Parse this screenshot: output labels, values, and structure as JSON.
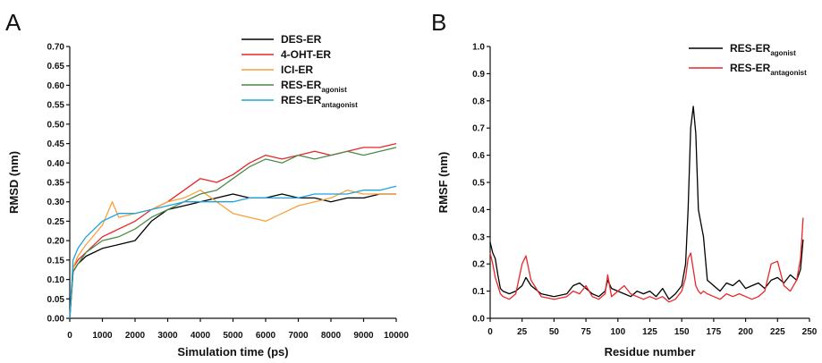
{
  "chart_data": [
    {
      "panel": "A",
      "type": "line",
      "xlabel": "Simulation time (ps)",
      "ylabel": "RMSD (nm)",
      "xlim": [
        0,
        10000
      ],
      "ylim": [
        0,
        0.7
      ],
      "xticks": [
        0,
        1000,
        2000,
        3000,
        4000,
        5000,
        6000,
        7000,
        8000,
        9000,
        10000
      ],
      "yticks": [
        "0.00",
        "0.05",
        "0.10",
        "0.15",
        "0.20",
        "0.25",
        "0.30",
        "0.35",
        "0.40",
        "0.45",
        "0.50",
        "0.55",
        "0.60",
        "0.65",
        "0.70"
      ],
      "legend_position": "top-right",
      "series": [
        {
          "name": "DES-ER",
          "color": "#000000",
          "x": [
            0,
            100,
            250,
            500,
            1000,
            1500,
            2000,
            2500,
            3000,
            3500,
            4000,
            4500,
            5000,
            5500,
            6000,
            6500,
            7000,
            7500,
            8000,
            8500,
            9000,
            9500,
            10000
          ],
          "y": [
            0.0,
            0.12,
            0.14,
            0.16,
            0.18,
            0.19,
            0.2,
            0.25,
            0.28,
            0.29,
            0.3,
            0.31,
            0.32,
            0.31,
            0.31,
            0.32,
            0.31,
            0.31,
            0.3,
            0.31,
            0.31,
            0.32,
            0.32
          ]
        },
        {
          "name": "4-OHT-ER",
          "color": "#e8262a",
          "x": [
            0,
            100,
            250,
            500,
            1000,
            1500,
            2000,
            2500,
            3000,
            3500,
            4000,
            4500,
            5000,
            5500,
            6000,
            6500,
            7000,
            7500,
            8000,
            8500,
            9000,
            9500,
            10000
          ],
          "y": [
            0.0,
            0.13,
            0.15,
            0.17,
            0.21,
            0.23,
            0.25,
            0.28,
            0.3,
            0.33,
            0.36,
            0.35,
            0.37,
            0.4,
            0.42,
            0.41,
            0.42,
            0.43,
            0.42,
            0.43,
            0.44,
            0.44,
            0.45
          ]
        },
        {
          "name": "ICI-ER",
          "color": "#f7a13b",
          "x": [
            0,
            100,
            250,
            500,
            1000,
            1300,
            1500,
            2000,
            2500,
            3000,
            3500,
            4000,
            4500,
            5000,
            5500,
            6000,
            6500,
            7000,
            7500,
            8000,
            8500,
            9000,
            9500,
            10000
          ],
          "y": [
            0.0,
            0.13,
            0.16,
            0.19,
            0.24,
            0.3,
            0.26,
            0.27,
            0.28,
            0.3,
            0.31,
            0.33,
            0.3,
            0.27,
            0.26,
            0.25,
            0.27,
            0.29,
            0.3,
            0.31,
            0.33,
            0.32,
            0.32,
            0.32
          ]
        },
        {
          "name": "RES-ER_agonist",
          "name_main": "RES-ER",
          "name_sub": "agonist",
          "color": "#4a8a4a",
          "x": [
            0,
            100,
            250,
            500,
            1000,
            1500,
            2000,
            2500,
            3000,
            3500,
            4000,
            4500,
            5000,
            5500,
            6000,
            6500,
            7000,
            7500,
            8000,
            8500,
            9000,
            9500,
            10000
          ],
          "y": [
            0.0,
            0.12,
            0.14,
            0.17,
            0.2,
            0.21,
            0.23,
            0.26,
            0.28,
            0.3,
            0.32,
            0.33,
            0.36,
            0.39,
            0.41,
            0.4,
            0.42,
            0.41,
            0.42,
            0.43,
            0.42,
            0.43,
            0.44
          ]
        },
        {
          "name": "RES-ER_antagonist",
          "name_main": "RES-ER",
          "name_sub": "antagonist",
          "color": "#1fa3e0",
          "x": [
            0,
            100,
            250,
            500,
            1000,
            1500,
            2000,
            2500,
            3000,
            3500,
            4000,
            4500,
            5000,
            5500,
            6000,
            6500,
            7000,
            7500,
            8000,
            8500,
            9000,
            9500,
            10000
          ],
          "y": [
            0.0,
            0.15,
            0.18,
            0.21,
            0.25,
            0.27,
            0.27,
            0.28,
            0.29,
            0.3,
            0.3,
            0.3,
            0.3,
            0.31,
            0.31,
            0.31,
            0.31,
            0.32,
            0.32,
            0.32,
            0.33,
            0.33,
            0.34
          ]
        }
      ]
    },
    {
      "panel": "B",
      "type": "line",
      "xlabel": "Residue number",
      "ylabel": "RMSF (nm)",
      "xlim": [
        0,
        250
      ],
      "ylim": [
        0,
        1.0
      ],
      "xticks": [
        0,
        25,
        50,
        75,
        100,
        125,
        150,
        175,
        200,
        225,
        250
      ],
      "yticks": [
        "0.0",
        "0.1",
        "0.2",
        "0.3",
        "0.4",
        "0.5",
        "0.6",
        "0.7",
        "0.8",
        "0.9",
        "1.0"
      ],
      "legend_position": "top-right",
      "series": [
        {
          "name": "RES-ER_agonist",
          "name_main": "RES-ER",
          "name_sub": "agonist",
          "color": "#000000",
          "x": [
            0,
            2,
            4,
            6,
            8,
            10,
            15,
            20,
            25,
            28,
            32,
            40,
            50,
            60,
            65,
            70,
            75,
            80,
            85,
            90,
            92,
            95,
            100,
            105,
            110,
            115,
            120,
            125,
            130,
            135,
            140,
            145,
            150,
            153,
            155,
            157,
            159,
            161,
            163,
            165,
            167,
            170,
            175,
            180,
            185,
            190,
            195,
            200,
            205,
            210,
            215,
            220,
            225,
            230,
            235,
            240,
            243,
            245
          ],
          "y": [
            0.28,
            0.24,
            0.22,
            0.16,
            0.11,
            0.1,
            0.09,
            0.1,
            0.12,
            0.15,
            0.12,
            0.09,
            0.08,
            0.09,
            0.12,
            0.13,
            0.11,
            0.09,
            0.08,
            0.1,
            0.14,
            0.11,
            0.1,
            0.09,
            0.08,
            0.1,
            0.09,
            0.1,
            0.08,
            0.11,
            0.07,
            0.09,
            0.12,
            0.2,
            0.4,
            0.7,
            0.78,
            0.68,
            0.4,
            0.35,
            0.3,
            0.14,
            0.12,
            0.1,
            0.13,
            0.12,
            0.14,
            0.11,
            0.12,
            0.13,
            0.11,
            0.14,
            0.15,
            0.13,
            0.16,
            0.14,
            0.18,
            0.29
          ]
        },
        {
          "name": "RES-ER_antagonist",
          "name_main": "RES-ER",
          "name_sub": "antagonist",
          "color": "#e8262a",
          "x": [
            0,
            2,
            4,
            6,
            8,
            10,
            15,
            20,
            25,
            28,
            32,
            40,
            50,
            60,
            65,
            70,
            75,
            80,
            85,
            90,
            92,
            95,
            100,
            105,
            110,
            115,
            120,
            125,
            130,
            135,
            140,
            145,
            150,
            153,
            155,
            157,
            159,
            161,
            163,
            165,
            167,
            170,
            175,
            180,
            185,
            190,
            195,
            200,
            205,
            210,
            215,
            220,
            225,
            230,
            235,
            240,
            243,
            245
          ],
          "y": [
            0.24,
            0.2,
            0.15,
            0.12,
            0.09,
            0.08,
            0.07,
            0.09,
            0.2,
            0.23,
            0.14,
            0.08,
            0.07,
            0.08,
            0.1,
            0.09,
            0.12,
            0.08,
            0.07,
            0.09,
            0.16,
            0.08,
            0.1,
            0.12,
            0.09,
            0.08,
            0.07,
            0.08,
            0.07,
            0.08,
            0.06,
            0.07,
            0.1,
            0.15,
            0.22,
            0.24,
            0.18,
            0.12,
            0.1,
            0.09,
            0.1,
            0.09,
            0.08,
            0.07,
            0.09,
            0.08,
            0.09,
            0.08,
            0.07,
            0.08,
            0.1,
            0.2,
            0.21,
            0.12,
            0.1,
            0.14,
            0.22,
            0.37
          ]
        }
      ]
    }
  ]
}
